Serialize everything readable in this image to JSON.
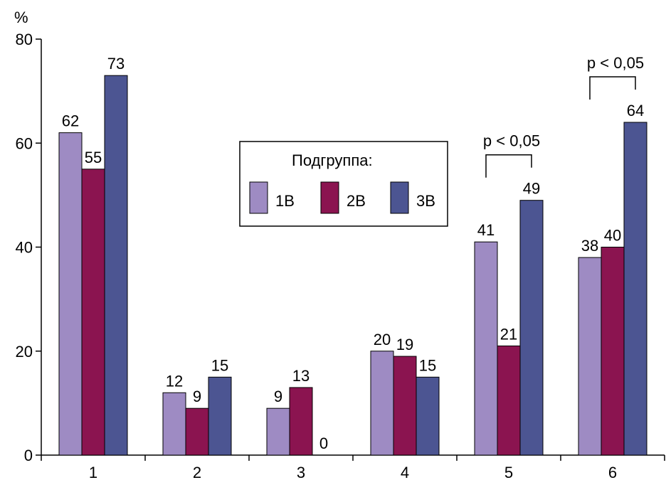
{
  "chart_data": {
    "type": "bar",
    "ylabel": "%",
    "xlabel": "",
    "title": "",
    "ylim": [
      0,
      80
    ],
    "yticks": [
      0,
      20,
      40,
      60,
      80
    ],
    "categories": [
      "1",
      "2",
      "3",
      "4",
      "5",
      "6"
    ],
    "series": [
      {
        "name": "1B",
        "color": "#9e8bc3",
        "values": [
          62,
          12,
          9,
          20,
          41,
          38
        ]
      },
      {
        "name": "2B",
        "color": "#8b1450",
        "values": [
          55,
          9,
          13,
          19,
          21,
          40
        ]
      },
      {
        "name": "3B",
        "color": "#4c5592",
        "values": [
          73,
          15,
          0,
          15,
          49,
          64
        ]
      }
    ],
    "legend": {
      "title": "Подгруппа:",
      "placement": "center"
    },
    "annotations": [
      {
        "text": "p < 0,05",
        "category": "5",
        "from_series": "1B",
        "to_series": "3B"
      },
      {
        "text": "p < 0,05",
        "category": "6",
        "from_series": "1B",
        "to_series": "3B"
      }
    ],
    "grid": false
  }
}
